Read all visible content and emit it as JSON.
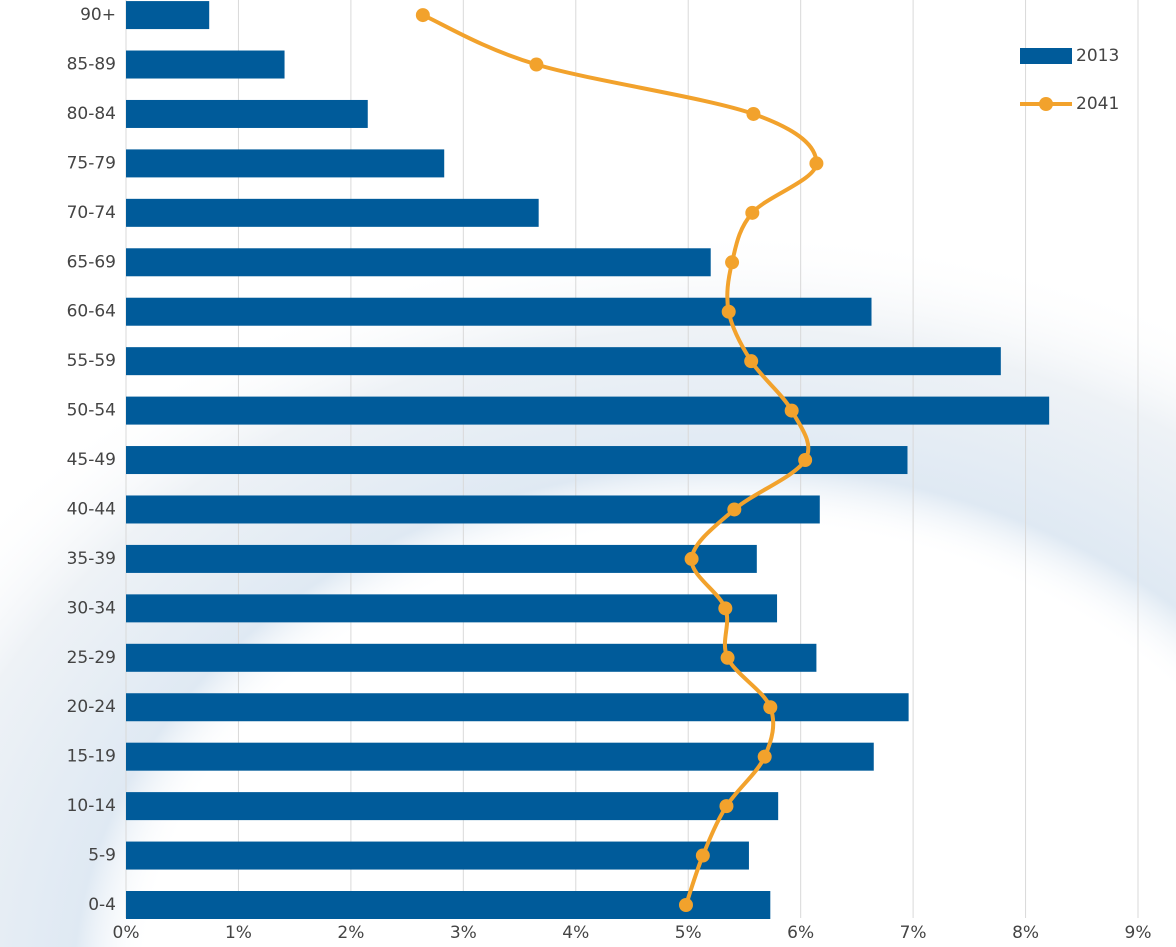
{
  "chart_data": {
    "type": "bar",
    "orientation": "horizontal",
    "categories": [
      "0-4",
      "5-9",
      "10-14",
      "15-19",
      "20-24",
      "25-29",
      "30-34",
      "35-39",
      "40-44",
      "45-49",
      "50-54",
      "55-59",
      "60-64",
      "65-69",
      "70-74",
      "75-79",
      "80-84",
      "85-89",
      "90+"
    ],
    "series": [
      {
        "name": "2013",
        "type": "bar",
        "color": "#005b9a",
        "values": [
          5.73,
          5.54,
          5.8,
          6.65,
          6.96,
          6.14,
          5.79,
          5.61,
          6.17,
          6.95,
          8.21,
          7.78,
          6.63,
          5.2,
          3.67,
          2.83,
          2.15,
          1.41,
          0.74
        ]
      },
      {
        "name": "2041",
        "type": "line",
        "color": "#f2a22c",
        "values": [
          4.98,
          5.13,
          5.34,
          5.68,
          5.73,
          5.35,
          5.33,
          5.03,
          5.41,
          6.04,
          5.92,
          5.56,
          5.36,
          5.39,
          5.57,
          6.14,
          5.58,
          3.65,
          2.64
        ]
      }
    ],
    "xlim": [
      0,
      9
    ],
    "xticks": [
      {
        "value": 0,
        "label": "0%"
      },
      {
        "value": 1,
        "label": "1%"
      },
      {
        "value": 2,
        "label": "2%"
      },
      {
        "value": 3,
        "label": "3%"
      },
      {
        "value": 4,
        "label": "4%"
      },
      {
        "value": 5,
        "label": "5%"
      },
      {
        "value": 6,
        "label": "6%"
      },
      {
        "value": 7,
        "label": "7%"
      },
      {
        "value": 8,
        "label": "8%"
      },
      {
        "value": 9,
        "label": "9%"
      }
    ],
    "grid": true,
    "legend": "top-right"
  }
}
